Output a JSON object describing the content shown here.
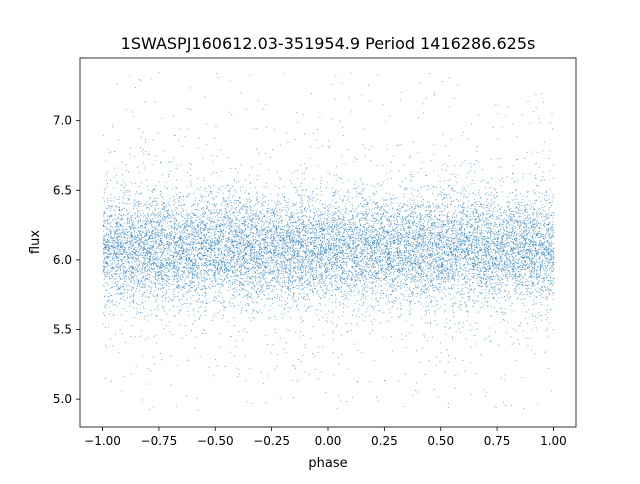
{
  "chart_data": {
    "type": "scatter",
    "title": "1SWASPJ160612.03-351954.9 Period 1416286.625s",
    "xlabel": "phase",
    "ylabel": "flux",
    "xlim": [
      -1.1,
      1.1
    ],
    "ylim": [
      4.8,
      7.45
    ],
    "xticks": [
      -1.0,
      -0.75,
      -0.5,
      -0.25,
      0.0,
      0.25,
      0.5,
      0.75,
      1.0
    ],
    "xtick_labels": [
      "−1.00",
      "−0.75",
      "−0.50",
      "−0.25",
      "0.00",
      "0.25",
      "0.50",
      "0.75",
      "1.00"
    ],
    "yticks": [
      5.0,
      5.5,
      6.0,
      6.5,
      7.0
    ],
    "ytick_labels": [
      "5.0",
      "5.5",
      "6.0",
      "6.5",
      "7.0"
    ],
    "grid": false,
    "legend": "none",
    "point_color": "#1f77b4",
    "approx_points": 14000,
    "x_range": [
      -1.0,
      1.0
    ],
    "central_flux": 6.08,
    "core_spread": [
      5.85,
      6.35
    ],
    "outlier_range": [
      4.92,
      7.35
    ],
    "note_on_points": "dense phase-folded photometry; points generated from these summary statistics"
  }
}
